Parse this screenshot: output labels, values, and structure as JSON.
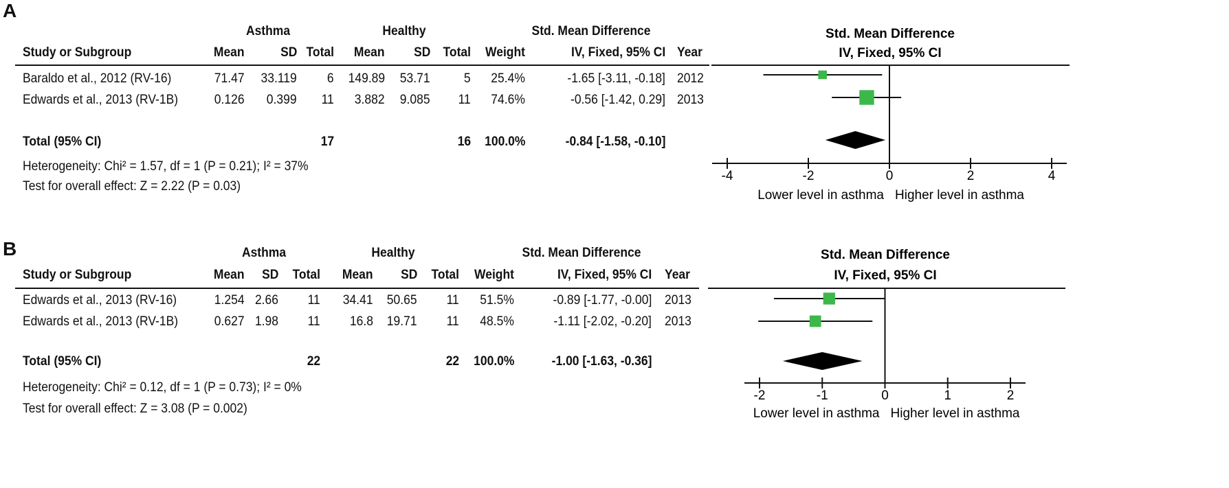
{
  "chart_data": [
    {
      "type": "forest",
      "panel_label": "A",
      "group1_label": "Asthma",
      "group2_label": "Healthy",
      "effect_title": "Std. Mean Difference",
      "columns": [
        "Study or Subgroup",
        "Mean",
        "SD",
        "Total",
        "Mean",
        "SD",
        "Total",
        "Weight",
        "IV, Fixed, 95% CI",
        "Year"
      ],
      "plot_title": "Std. Mean Difference",
      "plot_subtitle": "IV, Fixed, 95% CI",
      "studies": [
        {
          "name": "Baraldo et al., 2012 (RV-16)",
          "mean1": "71.47",
          "sd1": "33.119",
          "n1": "6",
          "mean2": "149.89",
          "sd2": "53.71",
          "n2": "5",
          "weight": "25.4%",
          "ci_text": "-1.65 [-3.11, -0.18]",
          "year": "2012",
          "est": -1.65,
          "lo": -3.11,
          "hi": -0.18,
          "w": 25.4
        },
        {
          "name": "Edwards et al., 2013 (RV-1B)",
          "mean1": "0.126",
          "sd1": "0.399",
          "n1": "11",
          "mean2": "3.882",
          "sd2": "9.085",
          "n2": "11",
          "weight": "74.6%",
          "ci_text": "-0.56 [-1.42, 0.29]",
          "year": "2013",
          "est": -0.56,
          "lo": -1.42,
          "hi": 0.29,
          "w": 74.6
        }
      ],
      "total": {
        "name": "Total (95% CI)",
        "n1": "17",
        "n2": "16",
        "weight": "100.0%",
        "ci_text": "-0.84 [-1.58, -0.10]",
        "est": -0.84,
        "lo": -1.58,
        "hi": -0.1
      },
      "heterogeneity": "Heterogeneity: Chi² = 1.57, df = 1 (P = 0.21); I² = 37%",
      "overall_effect": "Test for overall effect: Z = 2.22 (P = 0.03)",
      "xlim": [
        -4,
        4
      ],
      "ticks": [
        -4,
        -2,
        0,
        2,
        4
      ],
      "tick_labels": [
        "-4",
        "-2",
        "0",
        "2",
        "4"
      ],
      "favours_left": "Lower level in asthma",
      "favours_right": "Higher level in asthma"
    },
    {
      "type": "forest",
      "panel_label": "B",
      "group1_label": "Asthma",
      "group2_label": "Healthy",
      "effect_title": "Std. Mean Difference",
      "columns": [
        "Study or Subgroup",
        "Mean",
        "SD",
        "Total",
        "Mean",
        "SD",
        "Total",
        "Weight",
        "IV, Fixed, 95% CI",
        "Year"
      ],
      "plot_title": "Std. Mean Difference",
      "plot_subtitle": "IV, Fixed, 95% CI",
      "studies": [
        {
          "name": "Edwards et al., 2013 (RV-16)",
          "mean1": "1.254",
          "sd1": "2.66",
          "n1": "11",
          "mean2": "34.41",
          "sd2": "50.65",
          "n2": "11",
          "weight": "51.5%",
          "ci_text": "-0.89 [-1.77, -0.00]",
          "year": "2013",
          "est": -0.89,
          "lo": -1.77,
          "hi": -0.0,
          "w": 51.5
        },
        {
          "name": "Edwards et al., 2013 (RV-1B)",
          "mean1": "0.627",
          "sd1": "1.98",
          "n1": "11",
          "mean2": "16.8",
          "sd2": "19.71",
          "n2": "11",
          "weight": "48.5%",
          "ci_text": "-1.11 [-2.02, -0.20]",
          "year": "2013",
          "est": -1.11,
          "lo": -2.02,
          "hi": -0.2,
          "w": 48.5
        }
      ],
      "total": {
        "name": "Total (95% CI)",
        "n1": "22",
        "n2": "22",
        "weight": "100.0%",
        "ci_text": "-1.00 [-1.63, -0.36]",
        "est": -1.0,
        "lo": -1.63,
        "hi": -0.36
      },
      "heterogeneity": "Heterogeneity: Chi² = 0.12, df = 1 (P = 0.73); I² = 0%",
      "overall_effect": "Test for overall effect: Z = 3.08 (P = 0.002)",
      "xlim": [
        -2,
        2
      ],
      "ticks": [
        -2,
        -1,
        0,
        1,
        2
      ],
      "tick_labels": [
        "-2",
        "-1",
        "0",
        "1",
        "2"
      ],
      "favours_left": "Lower level in asthma",
      "favours_right": "Higher level in asthma"
    }
  ],
  "colors": {
    "square": "#3cb84a",
    "diamond": "#000000",
    "line": "#111111"
  }
}
